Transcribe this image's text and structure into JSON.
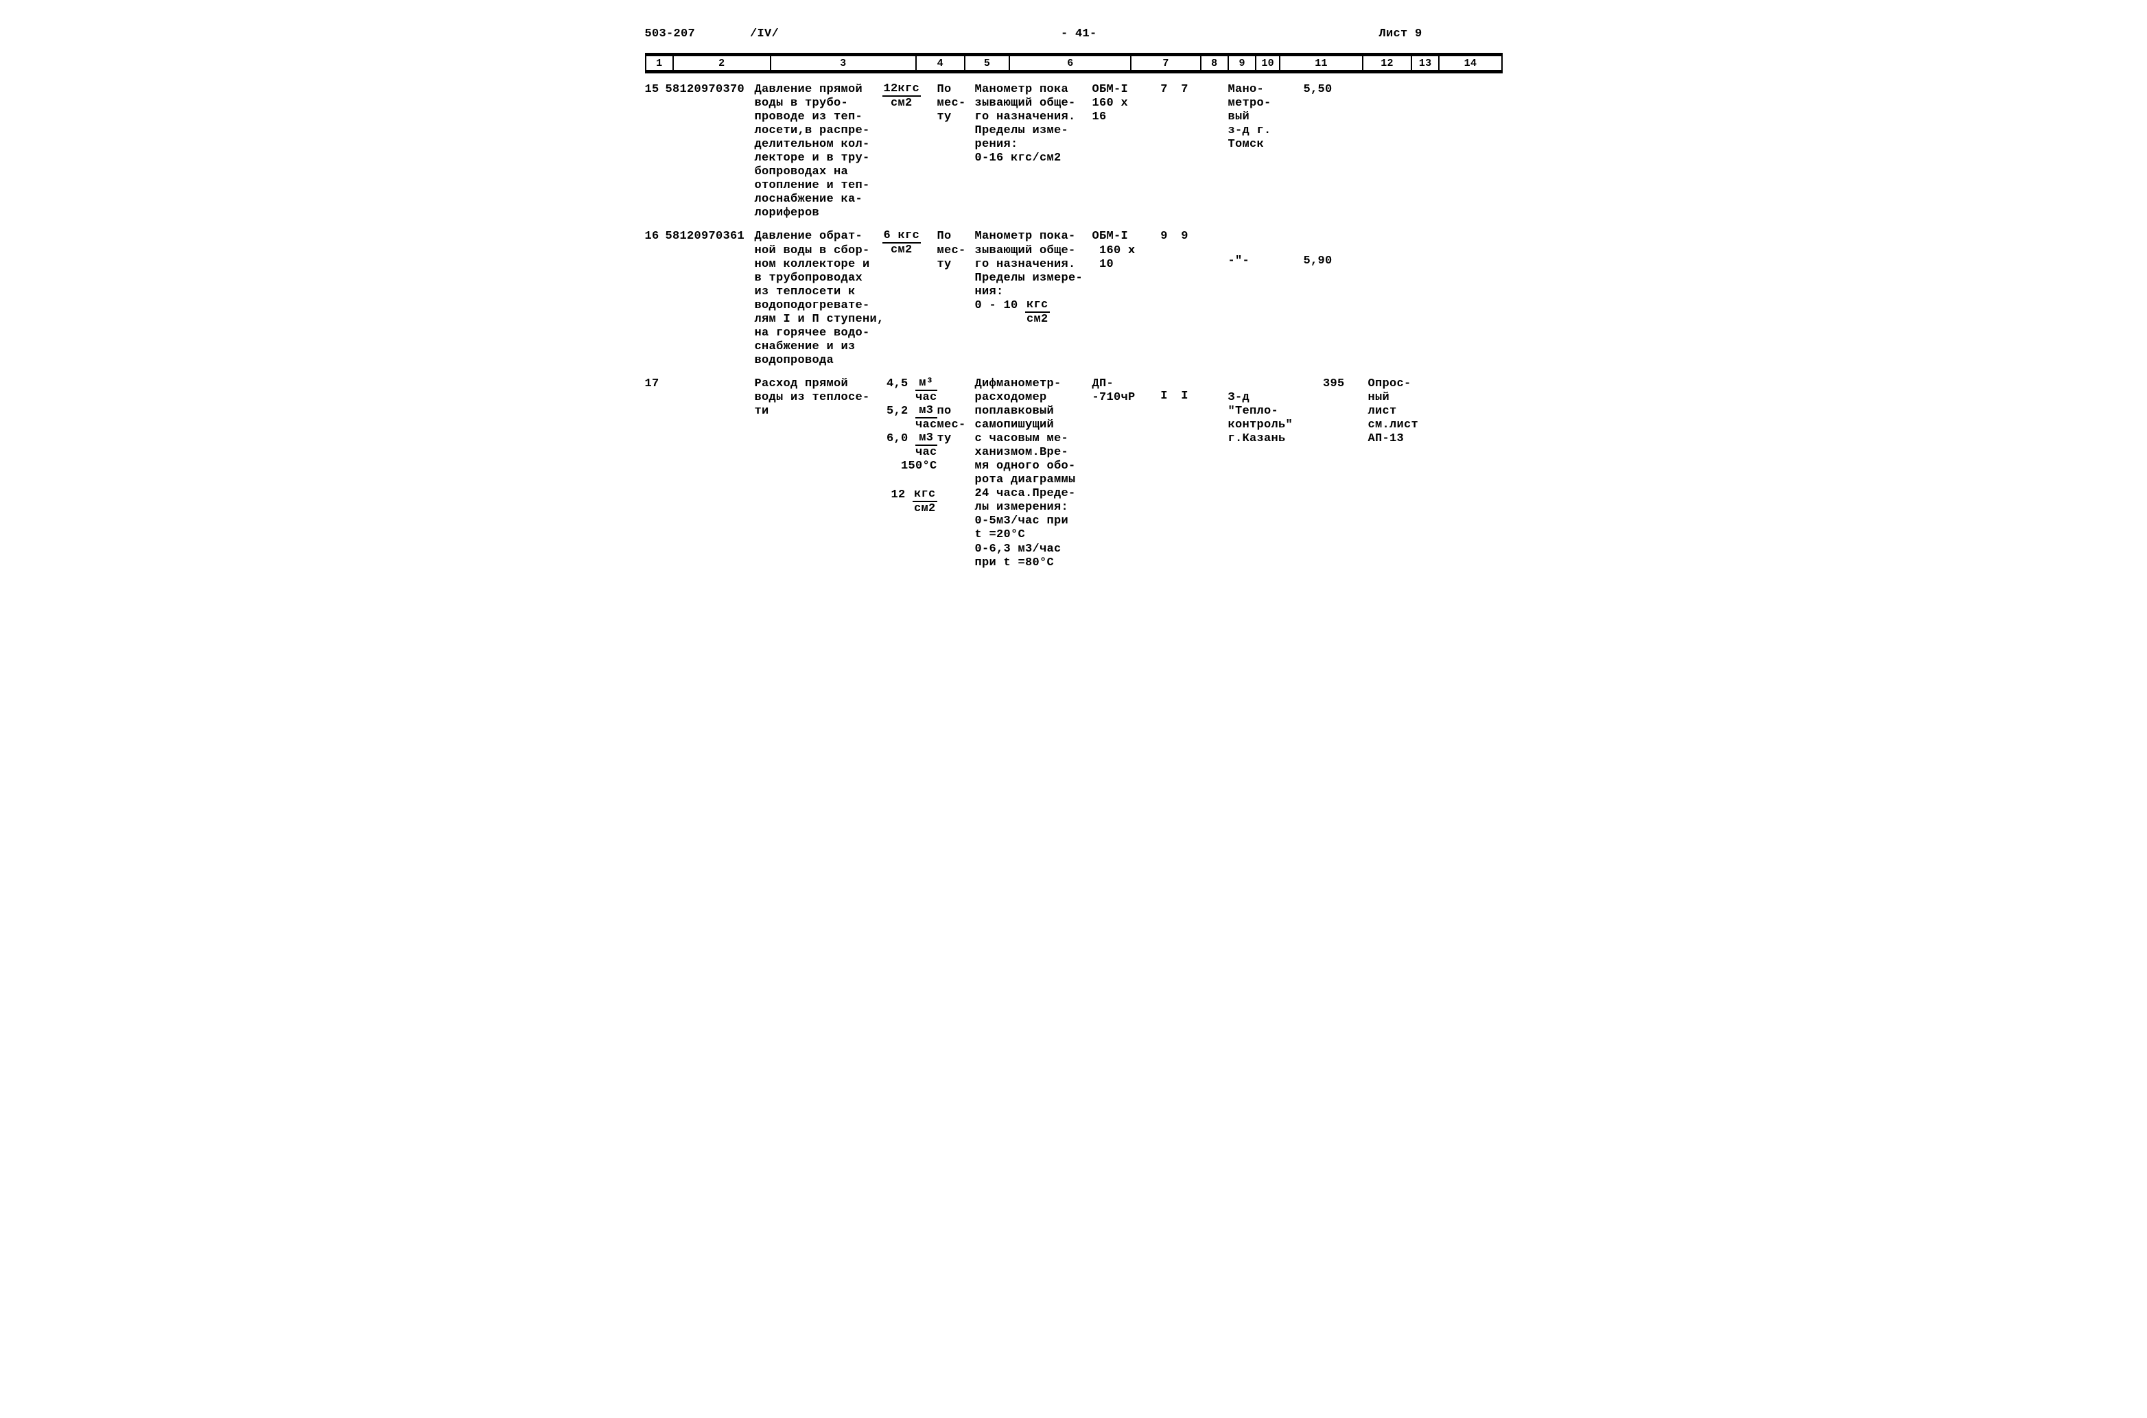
{
  "header": {
    "doc_no": "503-207",
    "vol": "/IV/",
    "page_center": "- 41-",
    "sheet": "Лист 9"
  },
  "column_labels": [
    "1",
    "2",
    "3",
    "4",
    "5",
    "6",
    "7",
    "8",
    "9",
    "10",
    "11",
    "12",
    "13",
    "14"
  ],
  "rows": {
    "r15": {
      "n": "15",
      "code": "58120970370",
      "c3a": "Давление прямой\nводы в трубо-\nпроводе из теп-\nлосети,в распре-\nделительном кол-\nлекторе и в тру-\nбопроводах на\nотопление и теп-\nлоснабжение ка-\nлориферов",
      "c3b_num": "12кгс",
      "c3b_den": "см2",
      "c4": "По\nмес-\nту",
      "c5": "Манометр пока\nзывающий обще-\nго назначения.\nПределы изме-\nрения:\n0-16 кгс/см2",
      "c6": "ОБМ-I\n160 х\n16",
      "c7": "7",
      "c8": "7",
      "c11": "Мано-\nметро-\nвый\nз-д г.\nТомск",
      "c12": "5,50"
    },
    "r16": {
      "n": "16",
      "code": "58120970361",
      "c3a": "Давление обрат-\nной воды в сбор-\nном коллекторе и\nв трубопроводах\nиз теплосети к\nводоподогревате-\nлям I и П ступени,\nна горячее водо-\nснабжение и из\nводопровода",
      "c3b_num": "6 кгс",
      "c3b_den": "см2",
      "c4": "По\nмес-\nту",
      "c5_a": "Манометр пока-\nзывающий обще-\nго назначения.\nПределы измере-\nния:",
      "c5_frac_pre": "0 - 10 ",
      "c5_frac_num": "кгс",
      "c5_frac_den": "см2",
      "c6": "ОБМ-I\n 160 х\n 10",
      "c7": "9",
      "c8": "9",
      "c11": "-\"-",
      "c12": "5,90"
    },
    "r17": {
      "n": "17",
      "code": "",
      "c3a": "Расход прямой\nводы из теплосе-\nти",
      "c3b_lines": [
        {
          "pre": "4,5 ",
          "num": "м³",
          "den": "час"
        },
        {
          "pre": "5,2 ",
          "num": "м3",
          "den": "час"
        },
        {
          "pre": "6,0 ",
          "num": "м3",
          "den": "час"
        },
        {
          "plain": "150°С"
        },
        {
          "blank": true
        },
        {
          "pre": "12 ",
          "num": "кгс",
          "den": "см2"
        }
      ],
      "c4": "\n\nпо\nмес-\nту",
      "c5": "Дифманометр-\nрасходомер\nпоплавковый\nсамопишущий\nс часовым ме-\nханизмом.Вре-\nмя одного обо-\nрота диаграммы\n24 часа.Преде-\nлы измерения:\n0-5м3/час при\nt =20°С\n0-6,3 м3/час\nпри t =80°С",
      "c6": "ДП-\n-710чР",
      "c7": "I",
      "c8": "I",
      "c11": "\nЗ-д\n\"Тепло-\nконтроль\"\nг.Казань",
      "c12": "395",
      "c14": "Опрос-\nный\nлист\nсм.лист\nАП-13"
    }
  }
}
